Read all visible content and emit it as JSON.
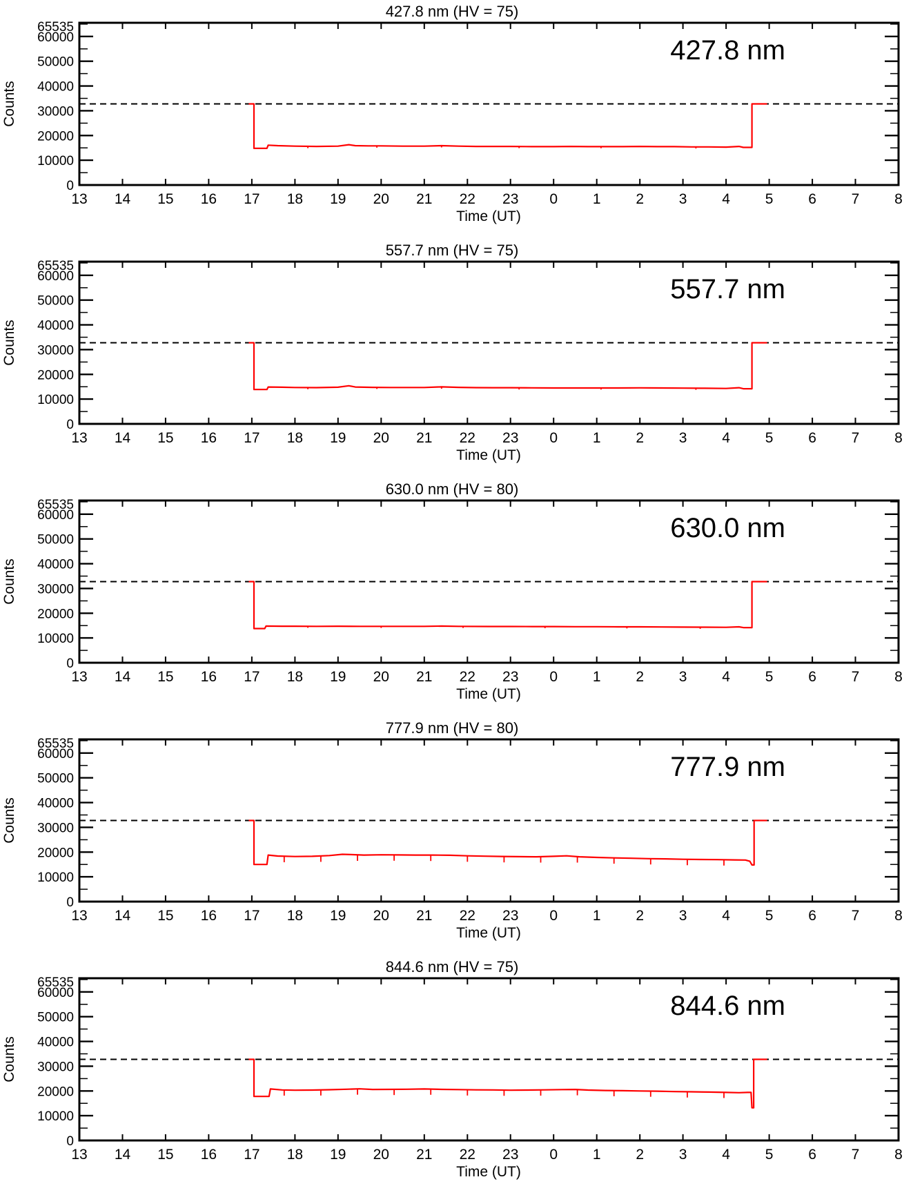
{
  "page": {
    "background": "#ffffff",
    "axis_color": "#000000",
    "trace_color": "#ff0000"
  },
  "chart_data": [
    {
      "type": "line",
      "title": "427.8 nm (HV = 75)",
      "inset_label": "427.8 nm",
      "xlabel": "Time (UT)",
      "ylabel": "Counts",
      "x_tick_labels": [
        "13",
        "14",
        "15",
        "16",
        "17",
        "18",
        "19",
        "20",
        "21",
        "22",
        "23",
        "0",
        "1",
        "2",
        "3",
        "4",
        "5",
        "6",
        "7",
        "8"
      ],
      "x_hours_span": [
        13,
        32
      ],
      "ylim": [
        0,
        65535
      ],
      "y_major_tick_values": [
        0,
        10000,
        20000,
        30000,
        40000,
        50000,
        60000
      ],
      "y_max_label": "65535",
      "y_minor_step": 5000,
      "dashed_line_value": 32767,
      "trace_color": "#ff0000",
      "points": [
        [
          16.93,
          32767
        ],
        [
          17.05,
          32767
        ],
        [
          17.05,
          14800
        ],
        [
          17.35,
          14800
        ],
        [
          17.38,
          16100
        ],
        [
          17.6,
          15900
        ],
        [
          18.0,
          15700
        ],
        [
          18.5,
          15600
        ],
        [
          19.0,
          15700
        ],
        [
          19.25,
          16300
        ],
        [
          19.4,
          15900
        ],
        [
          19.7,
          15800
        ],
        [
          20.0,
          15800
        ],
        [
          20.5,
          15700
        ],
        [
          21.0,
          15700
        ],
        [
          21.4,
          15900
        ],
        [
          21.8,
          15700
        ],
        [
          22.2,
          15600
        ],
        [
          22.6,
          15600
        ],
        [
          23.0,
          15600
        ],
        [
          23.5,
          15500
        ],
        [
          24.0,
          15500
        ],
        [
          24.4,
          15600
        ],
        [
          24.8,
          15500
        ],
        [
          25.2,
          15500
        ],
        [
          25.6,
          15500
        ],
        [
          26.0,
          15600
        ],
        [
          26.4,
          15500
        ],
        [
          26.8,
          15500
        ],
        [
          27.2,
          15400
        ],
        [
          27.6,
          15400
        ],
        [
          28.0,
          15300
        ],
        [
          28.3,
          15600
        ],
        [
          28.4,
          15200
        ],
        [
          28.6,
          15200
        ],
        [
          28.6,
          32767
        ],
        [
          28.95,
          32767
        ]
      ],
      "dropout_spikes": [
        [
          18.3,
          15650,
          14900
        ],
        [
          19.9,
          15800,
          15100
        ],
        [
          21.4,
          15900,
          15200
        ],
        [
          23.2,
          15550,
          14900
        ],
        [
          25.1,
          15500,
          14850
        ],
        [
          27.3,
          15400,
          14750
        ]
      ]
    },
    {
      "type": "line",
      "title": "557.7 nm (HV = 75)",
      "inset_label": "557.7 nm",
      "xlabel": "Time (UT)",
      "ylabel": "Counts",
      "x_tick_labels": [
        "13",
        "14",
        "15",
        "16",
        "17",
        "18",
        "19",
        "20",
        "21",
        "22",
        "23",
        "0",
        "1",
        "2",
        "3",
        "4",
        "5",
        "6",
        "7",
        "8"
      ],
      "x_hours_span": [
        13,
        32
      ],
      "ylim": [
        0,
        65535
      ],
      "y_major_tick_values": [
        0,
        10000,
        20000,
        30000,
        40000,
        50000,
        60000
      ],
      "y_max_label": "65535",
      "y_minor_step": 5000,
      "dashed_line_value": 32767,
      "trace_color": "#ff0000",
      "points": [
        [
          16.93,
          32767
        ],
        [
          17.05,
          32767
        ],
        [
          17.05,
          13900
        ],
        [
          17.35,
          13900
        ],
        [
          17.38,
          14900
        ],
        [
          17.7,
          14800
        ],
        [
          18.0,
          14700
        ],
        [
          18.5,
          14650
        ],
        [
          19.0,
          14800
        ],
        [
          19.25,
          15400
        ],
        [
          19.4,
          14900
        ],
        [
          19.8,
          14750
        ],
        [
          20.2,
          14700
        ],
        [
          20.6,
          14700
        ],
        [
          21.0,
          14700
        ],
        [
          21.4,
          14950
        ],
        [
          21.8,
          14750
        ],
        [
          22.2,
          14650
        ],
        [
          22.6,
          14600
        ],
        [
          23.0,
          14600
        ],
        [
          23.5,
          14550
        ],
        [
          24.0,
          14500
        ],
        [
          24.5,
          14500
        ],
        [
          25.0,
          14500
        ],
        [
          25.5,
          14500
        ],
        [
          26.0,
          14550
        ],
        [
          26.5,
          14500
        ],
        [
          27.0,
          14450
        ],
        [
          27.5,
          14400
        ],
        [
          28.0,
          14300
        ],
        [
          28.3,
          14600
        ],
        [
          28.4,
          14200
        ],
        [
          28.6,
          14200
        ],
        [
          28.6,
          32767
        ],
        [
          28.95,
          32767
        ]
      ],
      "dropout_spikes": [
        [
          18.3,
          14700,
          14000
        ],
        [
          19.9,
          14750,
          14100
        ],
        [
          21.4,
          14900,
          14200
        ],
        [
          23.2,
          14550,
          13900
        ],
        [
          25.1,
          14500,
          13850
        ],
        [
          27.3,
          14400,
          13750
        ]
      ]
    },
    {
      "type": "line",
      "title": "630.0 nm (HV = 80)",
      "inset_label": "630.0 nm",
      "xlabel": "Time (UT)",
      "ylabel": "Counts",
      "x_tick_labels": [
        "13",
        "14",
        "15",
        "16",
        "17",
        "18",
        "19",
        "20",
        "21",
        "22",
        "23",
        "0",
        "1",
        "2",
        "3",
        "4",
        "5",
        "6",
        "7",
        "8"
      ],
      "x_hours_span": [
        13,
        32
      ],
      "ylim": [
        0,
        65535
      ],
      "y_major_tick_values": [
        0,
        10000,
        20000,
        30000,
        40000,
        50000,
        60000
      ],
      "y_max_label": "65535",
      "y_minor_step": 5000,
      "dashed_line_value": 32767,
      "trace_color": "#ff0000",
      "points": [
        [
          16.93,
          32767
        ],
        [
          17.05,
          32767
        ],
        [
          17.05,
          13800
        ],
        [
          17.3,
          13800
        ],
        [
          17.33,
          14800
        ],
        [
          17.7,
          14750
        ],
        [
          18.0,
          14750
        ],
        [
          18.5,
          14700
        ],
        [
          19.0,
          14750
        ],
        [
          19.5,
          14700
        ],
        [
          20.0,
          14700
        ],
        [
          20.5,
          14700
        ],
        [
          21.0,
          14700
        ],
        [
          21.4,
          14800
        ],
        [
          21.8,
          14700
        ],
        [
          22.5,
          14650
        ],
        [
          23.0,
          14650
        ],
        [
          23.5,
          14600
        ],
        [
          24.0,
          14600
        ],
        [
          24.5,
          14550
        ],
        [
          25.0,
          14550
        ],
        [
          25.5,
          14500
        ],
        [
          26.0,
          14500
        ],
        [
          26.5,
          14450
        ],
        [
          27.0,
          14400
        ],
        [
          27.5,
          14350
        ],
        [
          28.0,
          14300
        ],
        [
          28.3,
          14500
        ],
        [
          28.4,
          14200
        ],
        [
          28.6,
          14200
        ],
        [
          28.6,
          32767
        ],
        [
          28.95,
          32767
        ]
      ],
      "dropout_spikes": [
        [
          18.3,
          14750,
          14100
        ],
        [
          20.0,
          14700,
          14050
        ],
        [
          21.9,
          14700,
          14050
        ],
        [
          23.8,
          14600,
          13950
        ],
        [
          25.7,
          14500,
          13850
        ],
        [
          27.4,
          14350,
          13700
        ]
      ]
    },
    {
      "type": "line",
      "title": "777.9 nm (HV = 80)",
      "inset_label": "777.9 nm",
      "xlabel": "Time (UT)",
      "ylabel": "Counts",
      "x_tick_labels": [
        "13",
        "14",
        "15",
        "16",
        "17",
        "18",
        "19",
        "20",
        "21",
        "22",
        "23",
        "0",
        "1",
        "2",
        "3",
        "4",
        "5",
        "6",
        "7",
        "8"
      ],
      "x_hours_span": [
        13,
        32
      ],
      "ylim": [
        0,
        65535
      ],
      "y_major_tick_values": [
        0,
        10000,
        20000,
        30000,
        40000,
        50000,
        60000
      ],
      "y_max_label": "65535",
      "y_minor_step": 5000,
      "dashed_line_value": 32767,
      "trace_color": "#ff0000",
      "points": [
        [
          16.93,
          32767
        ],
        [
          17.05,
          32767
        ],
        [
          17.05,
          15000
        ],
        [
          17.35,
          15000
        ],
        [
          17.38,
          18800
        ],
        [
          17.6,
          18400
        ],
        [
          18.0,
          18200
        ],
        [
          18.4,
          18300
        ],
        [
          18.8,
          18600
        ],
        [
          19.1,
          19100
        ],
        [
          19.3,
          19000
        ],
        [
          19.6,
          18800
        ],
        [
          20.0,
          18900
        ],
        [
          20.4,
          18850
        ],
        [
          20.8,
          18800
        ],
        [
          21.2,
          18800
        ],
        [
          21.6,
          18700
        ],
        [
          22.0,
          18500
        ],
        [
          22.4,
          18350
        ],
        [
          22.8,
          18250
        ],
        [
          23.2,
          18150
        ],
        [
          23.6,
          18100
        ],
        [
          24.0,
          18300
        ],
        [
          24.3,
          18500
        ],
        [
          24.6,
          18100
        ],
        [
          25.0,
          17850
        ],
        [
          25.4,
          17650
        ],
        [
          25.8,
          17500
        ],
        [
          26.2,
          17350
        ],
        [
          26.6,
          17250
        ],
        [
          27.0,
          17100
        ],
        [
          27.4,
          17000
        ],
        [
          27.8,
          16950
        ],
        [
          28.2,
          16850
        ],
        [
          28.45,
          16800
        ],
        [
          28.55,
          16300
        ],
        [
          28.6,
          14800
        ],
        [
          28.65,
          14800
        ],
        [
          28.65,
          32767
        ],
        [
          28.95,
          32767
        ]
      ],
      "dropout_spikes": [
        [
          17.75,
          18300,
          15900
        ],
        [
          18.6,
          18450,
          16050
        ],
        [
          19.45,
          18850,
          16450
        ],
        [
          20.3,
          18900,
          16500
        ],
        [
          21.15,
          18800,
          16400
        ],
        [
          22.0,
          18500,
          16100
        ],
        [
          22.85,
          18250,
          15850
        ],
        [
          23.7,
          18150,
          15750
        ],
        [
          24.55,
          18150,
          15750
        ],
        [
          25.4,
          17650,
          15300
        ],
        [
          26.25,
          17350,
          15000
        ],
        [
          27.1,
          17100,
          14700
        ],
        [
          27.95,
          16900,
          14550
        ]
      ]
    },
    {
      "type": "line",
      "title": "844.6 nm (HV = 75)",
      "inset_label": "844.6 nm",
      "xlabel": "Time (UT)",
      "ylabel": "Counts",
      "x_tick_labels": [
        "13",
        "14",
        "15",
        "16",
        "17",
        "18",
        "19",
        "20",
        "21",
        "22",
        "23",
        "0",
        "1",
        "2",
        "3",
        "4",
        "5",
        "6",
        "7",
        "8"
      ],
      "x_hours_span": [
        13,
        32
      ],
      "ylim": [
        0,
        65535
      ],
      "y_major_tick_values": [
        0,
        10000,
        20000,
        30000,
        40000,
        50000,
        60000
      ],
      "y_max_label": "65535",
      "y_minor_step": 5000,
      "dashed_line_value": 32767,
      "trace_color": "#ff0000",
      "points": [
        [
          16.93,
          32767
        ],
        [
          17.05,
          32767
        ],
        [
          17.05,
          17800
        ],
        [
          17.4,
          17800
        ],
        [
          17.43,
          20800
        ],
        [
          17.7,
          20400
        ],
        [
          18.0,
          20300
        ],
        [
          18.4,
          20350
        ],
        [
          18.8,
          20500
        ],
        [
          19.2,
          20700
        ],
        [
          19.5,
          20850
        ],
        [
          19.8,
          20600
        ],
        [
          20.2,
          20650
        ],
        [
          20.6,
          20700
        ],
        [
          21.0,
          20800
        ],
        [
          21.4,
          20650
        ],
        [
          21.8,
          20550
        ],
        [
          22.2,
          20450
        ],
        [
          22.6,
          20400
        ],
        [
          23.0,
          20300
        ],
        [
          23.4,
          20350
        ],
        [
          23.8,
          20450
        ],
        [
          24.2,
          20550
        ],
        [
          24.5,
          20600
        ],
        [
          24.8,
          20350
        ],
        [
          25.2,
          20200
        ],
        [
          25.6,
          20100
        ],
        [
          26.0,
          20000
        ],
        [
          26.4,
          19900
        ],
        [
          26.8,
          19750
        ],
        [
          27.2,
          19650
        ],
        [
          27.6,
          19550
        ],
        [
          28.0,
          19400
        ],
        [
          28.3,
          19300
        ],
        [
          28.5,
          19400
        ],
        [
          28.58,
          19400
        ],
        [
          28.6,
          13200
        ],
        [
          28.64,
          13200
        ],
        [
          28.64,
          32767
        ],
        [
          28.95,
          32767
        ]
      ],
      "dropout_spikes": [
        [
          17.75,
          20400,
          18100
        ],
        [
          18.6,
          20450,
          18150
        ],
        [
          19.45,
          20800,
          18500
        ],
        [
          20.3,
          20650,
          18350
        ],
        [
          21.15,
          20750,
          18450
        ],
        [
          22.0,
          20450,
          18150
        ],
        [
          22.85,
          20350,
          18050
        ],
        [
          23.7,
          20400,
          18100
        ],
        [
          24.55,
          20550,
          18250
        ],
        [
          25.4,
          20150,
          17850
        ],
        [
          26.25,
          19950,
          17650
        ],
        [
          27.1,
          19650,
          17350
        ],
        [
          27.95,
          19450,
          17150
        ]
      ]
    }
  ]
}
